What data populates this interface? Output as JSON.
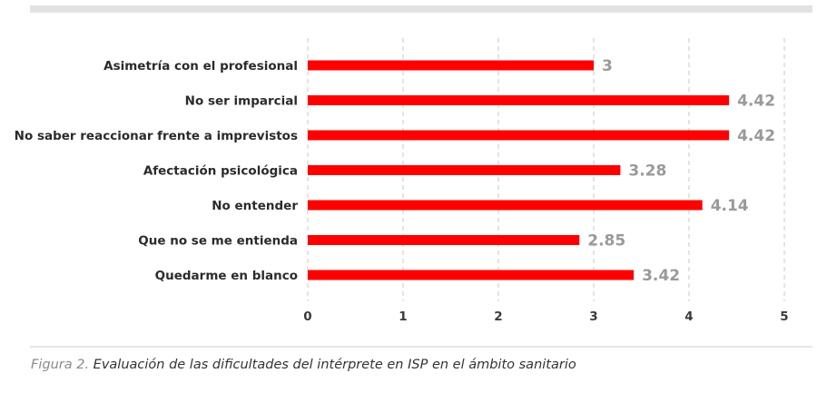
{
  "chart_data": {
    "type": "bar",
    "orientation": "horizontal",
    "categories": [
      "Asimetría con el profesional",
      "No ser imparcial",
      "No saber reaccionar frente a imprevistos",
      "Afectación psicológica",
      "No entender",
      "Que no  se me entienda",
      "Quedarme en blanco"
    ],
    "values": [
      3,
      4.42,
      4.42,
      3.28,
      4.14,
      2.85,
      3.42
    ],
    "value_labels": [
      "3",
      "4.42",
      "4.42",
      "3.28",
      "4.14",
      "2.85",
      "3.42"
    ],
    "xlim": [
      0,
      5
    ],
    "x_ticks": [
      "0",
      "1",
      "2",
      "3",
      "4",
      "5"
    ],
    "grid": "vertical dashed",
    "bar_color": "#ff0000",
    "title": "",
    "xlabel": "",
    "ylabel": ""
  },
  "caption": {
    "figure_label": "Figura 2.",
    "text": "Evaluación de las dificultades del intérprete en ISP en el ámbito sanitario"
  },
  "colors": {
    "bar": "#ff0000",
    "value_label": "#9a9a9a",
    "grid": "#c8c8c8",
    "frame_top": "#e2e2e2"
  }
}
